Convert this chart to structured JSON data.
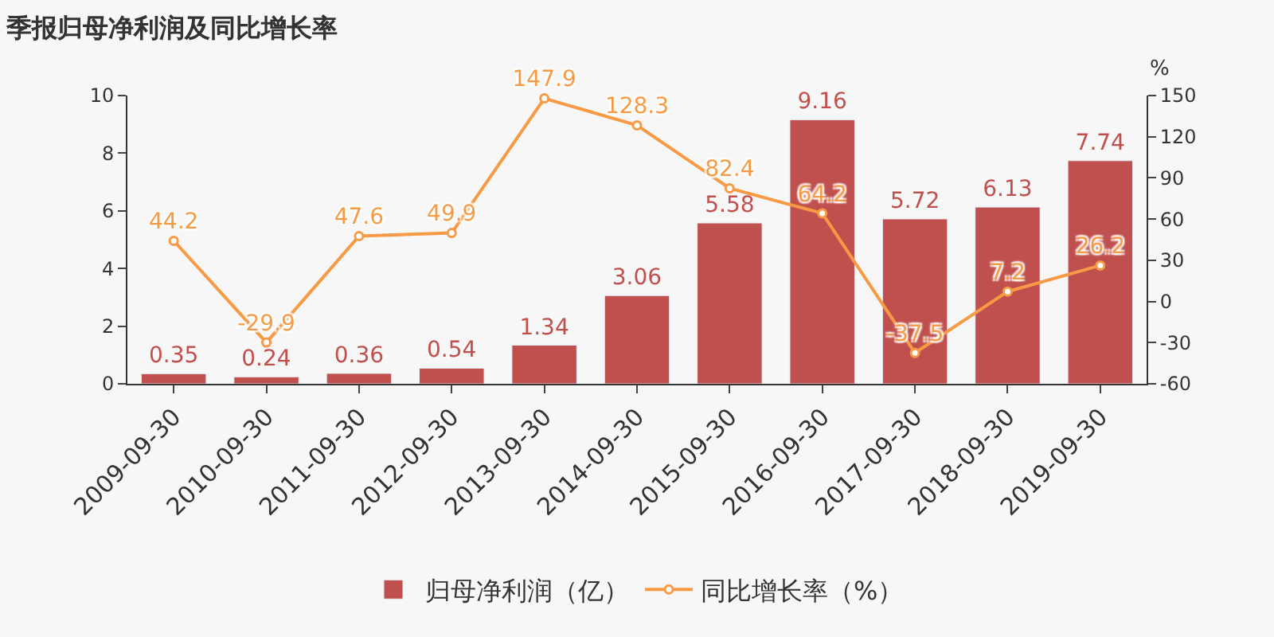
{
  "chart_data": {
    "type": "bar",
    "title": "季报归母净利润及同比增长率",
    "y2label": "%",
    "categories": [
      "2009-09-30",
      "2010-09-30",
      "2011-09-30",
      "2012-09-30",
      "2013-09-30",
      "2014-09-30",
      "2015-09-30",
      "2016-09-30",
      "2017-09-30",
      "2018-09-30",
      "2019-09-30"
    ],
    "series": [
      {
        "name": "归母净利润（亿）",
        "color": "#c0504d",
        "values": [
          0.35,
          0.24,
          0.36,
          0.54,
          1.34,
          3.06,
          5.58,
          9.16,
          5.72,
          6.13,
          7.74
        ]
      },
      {
        "name": "同比增长率（%）",
        "type": "line",
        "axis": "y2",
        "color": "#f79a45",
        "marker": "circle",
        "values": [
          44.2,
          -29.9,
          47.6,
          49.9,
          147.9,
          128.3,
          82.4,
          64.2,
          -37.5,
          7.2,
          26.2
        ]
      }
    ],
    "ylim": [
      0,
      10
    ],
    "yticks": [
      0,
      2,
      4,
      6,
      8,
      10
    ],
    "y2lim": [
      -60,
      150
    ],
    "y2ticks": [
      -60,
      -30,
      0,
      30,
      60,
      90,
      120,
      150
    ],
    "data_labels": true,
    "grid": false,
    "legend": "bottom"
  }
}
